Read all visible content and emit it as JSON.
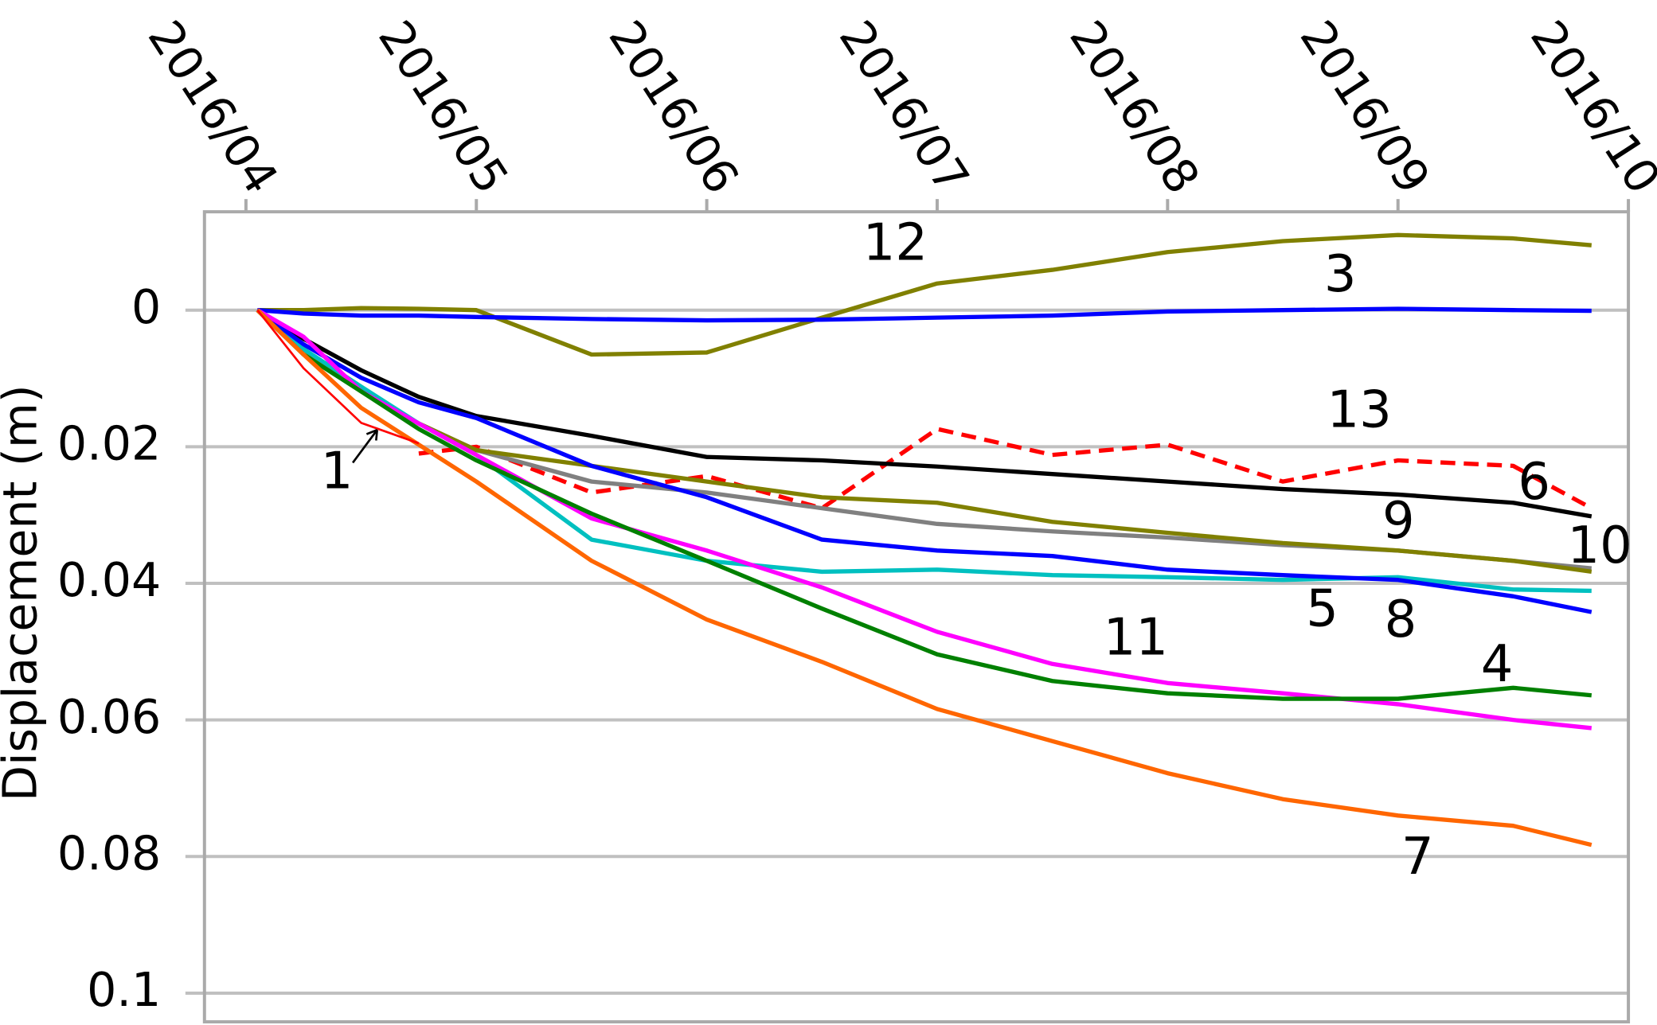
{
  "chart_data": {
    "type": "line",
    "y_axis_label": "Displacement (m)",
    "x": [
      0.05,
      0.25,
      0.5,
      0.75,
      1,
      1.5,
      2,
      2.5,
      3,
      3.5,
      4,
      4.5,
      5,
      5.5,
      5.84
    ],
    "xlim": [
      -0.18,
      6
    ],
    "xticks": [
      {
        "value": 0,
        "label": "2016/04"
      },
      {
        "value": 1,
        "label": "2016/05"
      },
      {
        "value": 2,
        "label": "2016/06"
      },
      {
        "value": 3,
        "label": "2016/07"
      },
      {
        "value": 4,
        "label": "2016/08"
      },
      {
        "value": 5,
        "label": "2016/09"
      },
      {
        "value": 6,
        "label": "2016/10"
      }
    ],
    "ylim": [
      -0.0144,
      0.1042
    ],
    "y_inverted": true,
    "yticks": [
      0,
      0.02,
      0.04,
      0.06,
      0.08,
      0.1
    ],
    "grid": true,
    "series": [
      {
        "name": "12",
        "color": "#808000",
        "values": [
          0,
          0,
          -0.0003,
          -0.0002,
          0,
          0.0065,
          0.0062,
          0.0011,
          -0.0039,
          -0.0059,
          -0.0085,
          -0.0101,
          -0.011,
          -0.0105,
          -0.0095
        ]
      },
      {
        "name": "3",
        "color": "#0000ff",
        "values": [
          0,
          0.0005,
          0.0008,
          0.0008,
          0.001,
          0.0013,
          0.0015,
          0.0014,
          0.0011,
          0.0008,
          0.0002,
          0,
          -0.0002,
          0,
          0.0001
        ]
      },
      {
        "name": "13",
        "color": "#ff0000",
        "dashed": true,
        "values": [
          null,
          null,
          null,
          0.021,
          0.02,
          0.0267,
          0.0243,
          0.029,
          0.0174,
          0.0212,
          0.0197,
          0.0251,
          0.022,
          0.0228,
          0.029
        ]
      },
      {
        "name": "6",
        "color": "#000000",
        "values": [
          0,
          0.0042,
          0.0088,
          0.0127,
          0.0155,
          0.0184,
          0.0215,
          0.022,
          0.0229,
          0.024,
          0.0251,
          0.0262,
          0.027,
          0.0282,
          0.0302
        ]
      },
      {
        "name": "9",
        "color": "#808080",
        "values": [
          0,
          0.0057,
          0.0116,
          0.0166,
          0.0205,
          0.0251,
          0.0267,
          0.029,
          0.0313,
          0.0324,
          0.0333,
          0.0344,
          0.0352,
          0.0367,
          0.0378
        ]
      },
      {
        "name": "10",
        "color": "#808000",
        "values": [
          0,
          0.0057,
          0.0119,
          0.0166,
          0.0205,
          0.0228,
          0.0251,
          0.0274,
          0.0282,
          0.031,
          0.0326,
          0.0341,
          0.0352,
          0.0367,
          0.0383
        ]
      },
      {
        "name": "5",
        "color": "#00c0c0",
        "values": [
          0,
          0.0057,
          0.0112,
          0.0166,
          0.0212,
          0.0336,
          0.0367,
          0.0383,
          0.038,
          0.0388,
          0.0391,
          0.0395,
          0.0391,
          0.0409,
          0.0411
        ]
      },
      {
        "name": "8",
        "color": "#0000ff",
        "values": [
          0,
          0.005,
          0.0099,
          0.0135,
          0.0158,
          0.0228,
          0.0274,
          0.0336,
          0.0352,
          0.036,
          0.038,
          0.0388,
          0.0395,
          0.0419,
          0.0442
        ]
      },
      {
        "name": "11",
        "color": "#ff00ff",
        "values": [
          0,
          0.0039,
          0.0119,
          0.0166,
          0.0212,
          0.0305,
          0.0352,
          0.0406,
          0.0471,
          0.0518,
          0.0546,
          0.0561,
          0.0577,
          0.06,
          0.0612
        ]
      },
      {
        "name": "4",
        "color": "#008000",
        "values": [
          0,
          0.0065,
          0.0119,
          0.0174,
          0.022,
          0.0298,
          0.0367,
          0.0437,
          0.0504,
          0.0543,
          0.0561,
          0.0569,
          0.0569,
          0.0553,
          0.0564
        ]
      },
      {
        "name": "7",
        "color": "#ff6600",
        "values": [
          0,
          0.0065,
          0.0143,
          0.0197,
          0.0251,
          0.0367,
          0.0453,
          0.0515,
          0.0584,
          0.0631,
          0.0678,
          0.0716,
          0.074,
          0.0755,
          0.0783
        ]
      },
      {
        "name": "1",
        "color": "#ff0000",
        "thin": true,
        "values": [
          0,
          0.0085,
          0.0165,
          0.0195,
          null,
          null,
          null,
          null,
          null,
          null,
          null,
          null,
          null,
          null,
          null
        ]
      }
    ]
  }
}
